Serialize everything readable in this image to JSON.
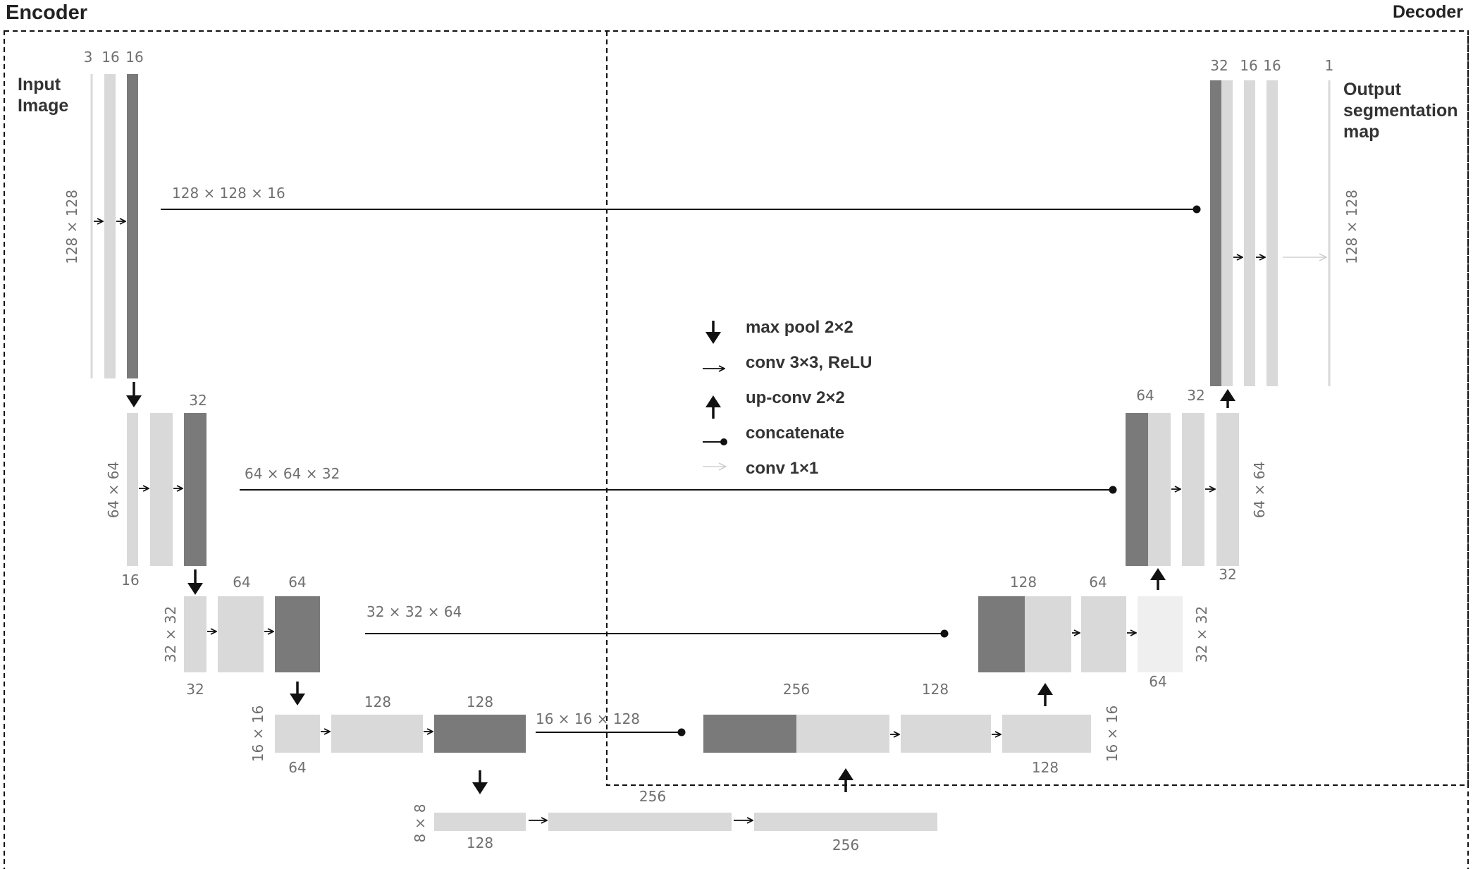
{
  "titles": {
    "encoder": "Encoder",
    "decoder": "Decoder"
  },
  "io": {
    "input": [
      "Input",
      "Image"
    ],
    "output": [
      "Output",
      "segmentation",
      "map"
    ]
  },
  "colors": {
    "light": "#d9d9d9",
    "dark": "#7a7a7a",
    "pale": "#efefef",
    "line": "#111111",
    "text": "#333333",
    "dim": "#6f6f6f"
  },
  "legend": {
    "items": [
      {
        "icon": "down-arrow-icon",
        "label": "max pool 2×2"
      },
      {
        "icon": "right-arrow-icon",
        "label": "conv 3×3, ReLU"
      },
      {
        "icon": "up-arrow-icon",
        "label": "up-conv 2×2"
      },
      {
        "icon": "dot-line-icon",
        "label": "concatenate"
      },
      {
        "icon": "light-arrow-icon",
        "label": "conv 1×1"
      }
    ]
  },
  "skips": [
    "128 × 128 × 16",
    "64 × 64 × 32",
    "32 × 32 × 64",
    "16 × 16 × 128"
  ],
  "resolutions": [
    "128 × 128",
    "64 × 64",
    "32 × 32",
    "16 × 16",
    "8 × 8"
  ],
  "enc": {
    "l1": [
      "3",
      "16",
      "16"
    ],
    "l2": [
      "32",
      "16"
    ],
    "l3": [
      "64",
      "64",
      "32"
    ],
    "l4": [
      "128",
      "128",
      "64"
    ],
    "l5": [
      "256",
      "128",
      "256"
    ]
  },
  "dec": {
    "d4": [
      "256",
      "128",
      "128"
    ],
    "d3": [
      "128",
      "64",
      "64"
    ],
    "d2": [
      "64",
      "32",
      "32"
    ],
    "d1": [
      "32",
      "16",
      "16",
      "1"
    ]
  }
}
